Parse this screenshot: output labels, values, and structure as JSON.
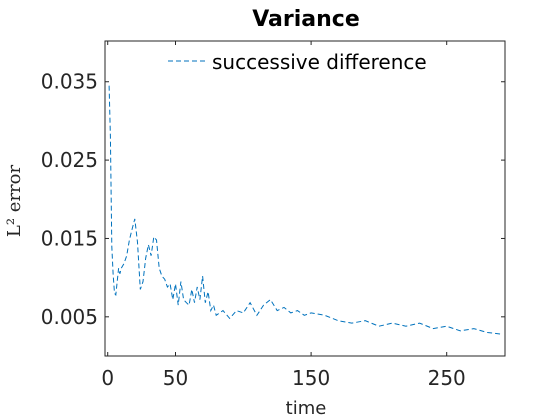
{
  "chart_data": {
    "type": "line",
    "title": "Variance",
    "xlabel": "time",
    "ylabel": "L² error",
    "xlim": [
      -2,
      293
    ],
    "ylim": [
      0,
      0.0402
    ],
    "xticks": [
      0,
      50,
      150,
      250
    ],
    "xtick_labels": [
      "0",
      "50",
      "150",
      "250"
    ],
    "yticks": [
      0.005,
      0.015,
      0.025,
      0.035
    ],
    "ytick_labels": [
      "0.005",
      "0.015",
      "0.025",
      "0.035"
    ],
    "grid": false,
    "legend_position": "top",
    "series": [
      {
        "name": "successive difference",
        "color": "#0072BD",
        "line_style": "dashed",
        "x": [
          1,
          2,
          3,
          4,
          5,
          6,
          7,
          8,
          9,
          10,
          12,
          14,
          16,
          18,
          20,
          22,
          24,
          26,
          28,
          30,
          32,
          34,
          36,
          38,
          40,
          42,
          44,
          46,
          48,
          50,
          52,
          54,
          56,
          58,
          60,
          62,
          64,
          66,
          68,
          70,
          72,
          74,
          76,
          78,
          80,
          85,
          90,
          95,
          100,
          105,
          110,
          115,
          120,
          125,
          130,
          135,
          140,
          145,
          150,
          160,
          170,
          180,
          190,
          200,
          210,
          220,
          230,
          240,
          250,
          260,
          270,
          280,
          290
        ],
        "values": [
          0.0345,
          0.028,
          0.014,
          0.0105,
          0.008,
          0.0078,
          0.0095,
          0.0112,
          0.0105,
          0.0112,
          0.0118,
          0.0128,
          0.0148,
          0.0162,
          0.0175,
          0.0145,
          0.0085,
          0.0095,
          0.0125,
          0.0142,
          0.0128,
          0.0152,
          0.0148,
          0.0112,
          0.0102,
          0.0098,
          0.0088,
          0.0092,
          0.0072,
          0.0092,
          0.0065,
          0.0095,
          0.0072,
          0.0068,
          0.0065,
          0.0085,
          0.0068,
          0.0088,
          0.0072,
          0.0102,
          0.0068,
          0.0082,
          0.0058,
          0.0065,
          0.0052,
          0.0058,
          0.0048,
          0.0058,
          0.0055,
          0.0068,
          0.0052,
          0.0065,
          0.0072,
          0.0058,
          0.0062,
          0.0055,
          0.0058,
          0.0052,
          0.0055,
          0.0052,
          0.0045,
          0.0042,
          0.0045,
          0.0038,
          0.0042,
          0.0038,
          0.0042,
          0.0035,
          0.0038,
          0.0032,
          0.0035,
          0.003,
          0.0028
        ]
      }
    ]
  }
}
